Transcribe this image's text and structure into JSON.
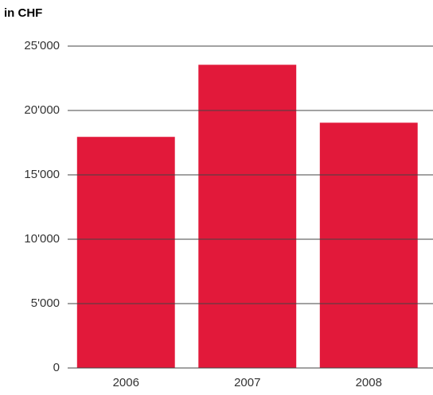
{
  "chart_data": {
    "type": "bar",
    "title": "in CHF",
    "categories": [
      "2006",
      "2007",
      "2008"
    ],
    "values": [
      17950,
      23550,
      19050
    ],
    "color": "#e2193a",
    "ylim": [
      0,
      25000
    ],
    "yticks": [
      0,
      {
        "value": 5000,
        "label": "5'000"
      },
      {
        "value": 10000,
        "label": "10'000"
      },
      {
        "value": 15000,
        "label": "15'000"
      },
      {
        "value": 20000,
        "label": "20'000"
      },
      {
        "value": 25000,
        "label": "25'000"
      }
    ],
    "grid": true
  }
}
